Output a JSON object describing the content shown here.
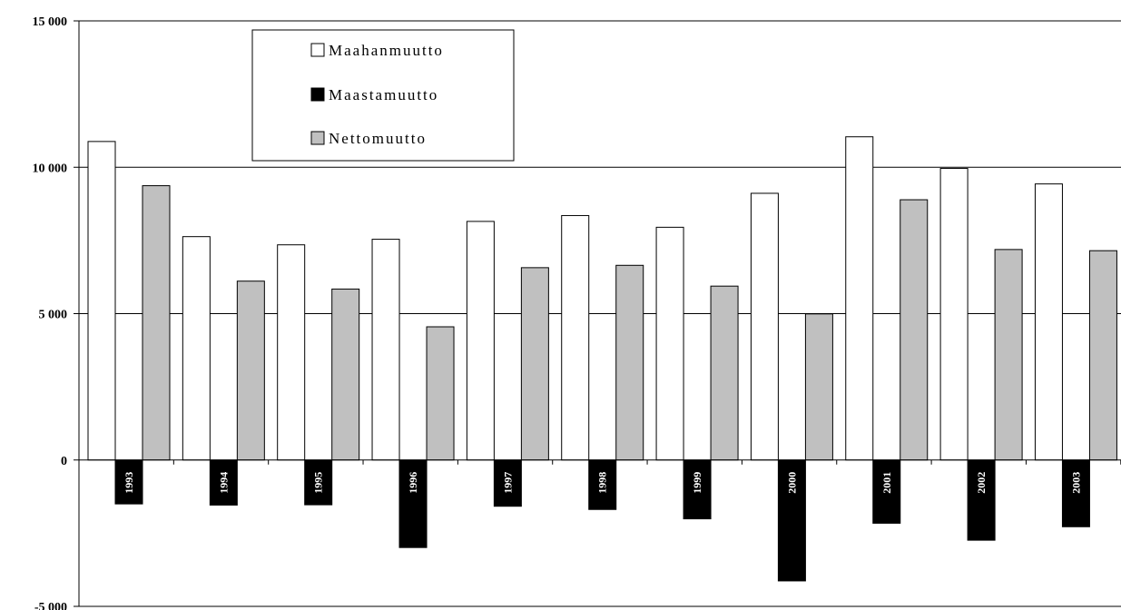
{
  "chart_data": {
    "type": "bar",
    "categories": [
      "1993",
      "1994",
      "1995",
      "1996",
      "1997",
      "1998",
      "1999",
      "2000",
      "2001",
      "2002",
      "2003"
    ],
    "series": [
      {
        "name": "Maahanmuutto",
        "color": "#ffffff",
        "values": [
          10880,
          7630,
          7350,
          7540,
          8150,
          8350,
          7950,
          9110,
          11040,
          9960,
          9430
        ]
      },
      {
        "name": "Maastamuutto",
        "color": "#000000",
        "values": [
          -1500,
          -1540,
          -1530,
          -2990,
          -1580,
          -1690,
          -2010,
          -4130,
          -2160,
          -2740,
          -2280
        ]
      },
      {
        "name": "Nettomuutto",
        "color": "#c0c0c0",
        "values": [
          9370,
          6110,
          5840,
          4550,
          6570,
          6650,
          5940,
          4990,
          8890,
          7190,
          7150
        ]
      }
    ],
    "yticks": [
      "15 000",
      "10 000",
      "5 000",
      "0",
      "-5 000"
    ],
    "ytick_values": [
      15000,
      10000,
      5000,
      0,
      -5000
    ],
    "ylim": [
      -5000,
      15000
    ],
    "grid": true,
    "legend_position": "top-left"
  }
}
